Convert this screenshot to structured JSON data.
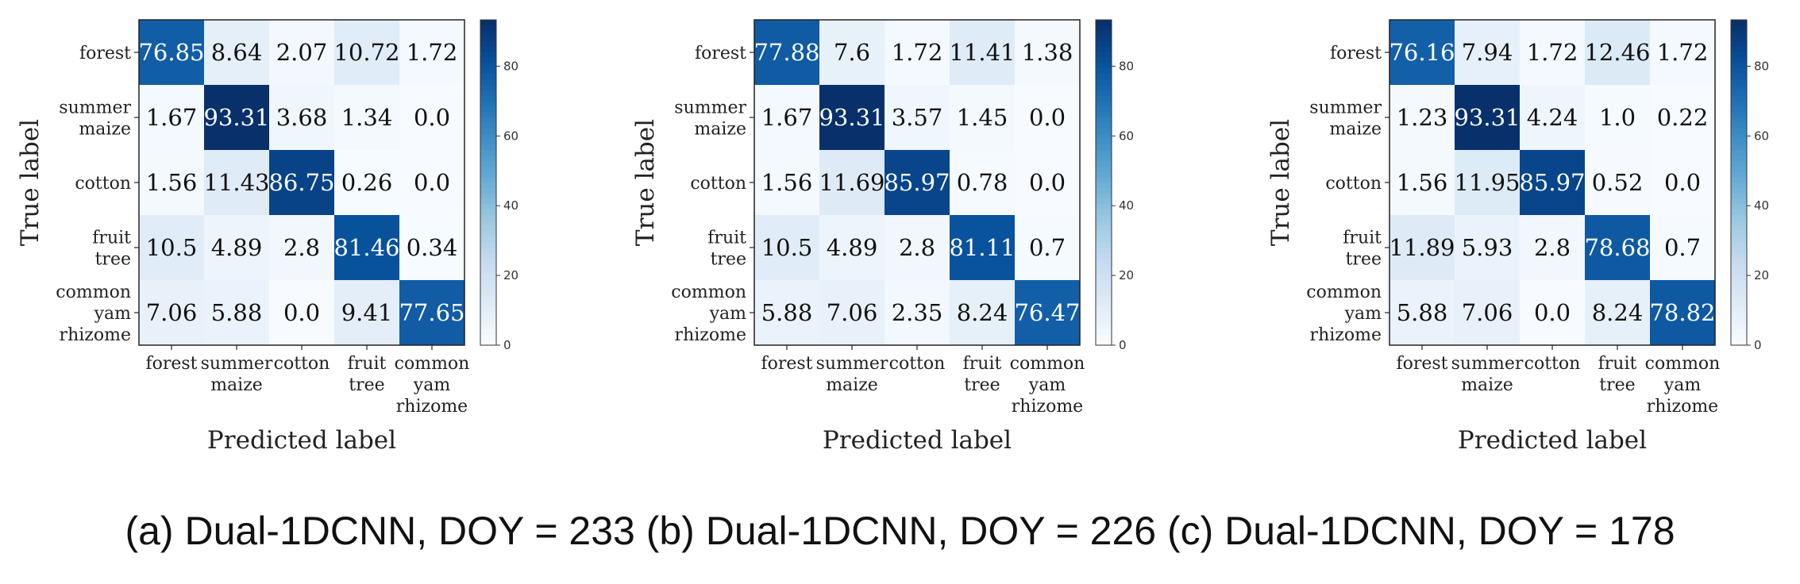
{
  "caption": "(a) Dual-1DCNN, DOY = 233 (b) Dual-1DCNN, DOY = 226 (c) Dual-1DCNN, DOY = 178",
  "colors": {
    "cmap_low": "#f7fbff",
    "cmap_high": "#08306b",
    "dark_text": "#111111",
    "light_text": "#ffffff"
  },
  "chart_data": [
    {
      "type": "heatmap",
      "xlabel": "Predicted label",
      "ylabel": "True label",
      "row_labels": [
        [
          "forest"
        ],
        [
          "summer",
          "maize"
        ],
        [
          "cotton"
        ],
        [
          "fruit",
          "tree"
        ],
        [
          "common",
          "yam",
          "rhizome"
        ]
      ],
      "col_labels": [
        [
          "forest"
        ],
        [
          "summer",
          "maize"
        ],
        [
          "cotton"
        ],
        [
          "fruit",
          "tree"
        ],
        [
          "common",
          "yam",
          "rhizome"
        ]
      ],
      "values": [
        [
          "76.85",
          "8.64",
          "2.07",
          "10.72",
          "1.72"
        ],
        [
          "1.67",
          "93.31",
          "3.68",
          "1.34",
          "0.0"
        ],
        [
          "1.56",
          "11.43",
          "86.75",
          "0.26",
          "0.0"
        ],
        [
          "10.5",
          "4.89",
          "2.8",
          "81.46",
          "0.34"
        ],
        [
          "7.06",
          "5.88",
          "0.0",
          "9.41",
          "77.65"
        ]
      ],
      "colorbar": {
        "min": 0,
        "max": 93.31,
        "ticks": [
          "0",
          "20",
          "40",
          "60",
          "80"
        ]
      }
    },
    {
      "type": "heatmap",
      "xlabel": "Predicted label",
      "ylabel": "True label",
      "row_labels": [
        [
          "forest"
        ],
        [
          "summer",
          "maize"
        ],
        [
          "cotton"
        ],
        [
          "fruit",
          "tree"
        ],
        [
          "common",
          "yam",
          "rhizome"
        ]
      ],
      "col_labels": [
        [
          "forest"
        ],
        [
          "summer",
          "maize"
        ],
        [
          "cotton"
        ],
        [
          "fruit",
          "tree"
        ],
        [
          "common",
          "yam",
          "rhizome"
        ]
      ],
      "values": [
        [
          "77.88",
          "7.6",
          "1.72",
          "11.41",
          "1.38"
        ],
        [
          "1.67",
          "93.31",
          "3.57",
          "1.45",
          "0.0"
        ],
        [
          "1.56",
          "11.69",
          "85.97",
          "0.78",
          "0.0"
        ],
        [
          "10.5",
          "4.89",
          "2.8",
          "81.11",
          "0.7"
        ],
        [
          "5.88",
          "7.06",
          "2.35",
          "8.24",
          "76.47"
        ]
      ],
      "colorbar": {
        "min": 0,
        "max": 93.31,
        "ticks": [
          "0",
          "20",
          "40",
          "60",
          "80"
        ]
      }
    },
    {
      "type": "heatmap",
      "xlabel": "Predicted label",
      "ylabel": "True label",
      "row_labels": [
        [
          "forest"
        ],
        [
          "summer",
          "maize"
        ],
        [
          "cotton"
        ],
        [
          "fruit",
          "tree"
        ],
        [
          "common",
          "yam",
          "rhizome"
        ]
      ],
      "col_labels": [
        [
          "forest"
        ],
        [
          "summer",
          "maize"
        ],
        [
          "cotton"
        ],
        [
          "fruit",
          "tree"
        ],
        [
          "common",
          "yam",
          "rhizome"
        ]
      ],
      "values": [
        [
          "76.16",
          "7.94",
          "1.72",
          "12.46",
          "1.72"
        ],
        [
          "1.23",
          "93.31",
          "4.24",
          "1.0",
          "0.22"
        ],
        [
          "1.56",
          "11.95",
          "85.97",
          "0.52",
          "0.0"
        ],
        [
          "11.89",
          "5.93",
          "2.8",
          "78.68",
          "0.7"
        ],
        [
          "5.88",
          "7.06",
          "0.0",
          "8.24",
          "78.82"
        ]
      ],
      "colorbar": {
        "min": 0,
        "max": 93.31,
        "ticks": [
          "0",
          "20",
          "40",
          "60",
          "80"
        ]
      }
    }
  ]
}
